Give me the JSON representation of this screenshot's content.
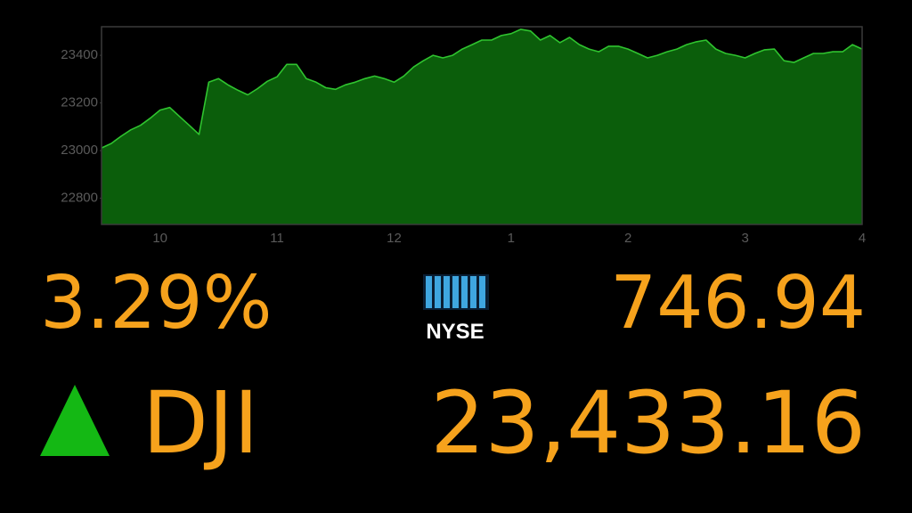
{
  "chart_data": {
    "type": "area",
    "categories": [
      null,
      null,
      null,
      null,
      null,
      null,
      "10",
      null,
      null,
      null,
      null,
      null,
      null,
      null,
      null,
      null,
      null,
      null,
      "11",
      null,
      null,
      null,
      null,
      null,
      null,
      null,
      null,
      null,
      null,
      null,
      "12",
      null,
      null,
      null,
      null,
      null,
      null,
      null,
      null,
      null,
      null,
      null,
      "1",
      null,
      null,
      null,
      null,
      null,
      null,
      null,
      null,
      null,
      null,
      null,
      "2",
      null,
      null,
      null,
      null,
      null,
      null,
      null,
      null,
      null,
      null,
      null,
      "3",
      null,
      null,
      null,
      null,
      null,
      null,
      null,
      null,
      null,
      null,
      null,
      "4"
    ],
    "values": [
      23011,
      23030,
      23060,
      23087,
      23106,
      23136,
      23170,
      23181,
      23143,
      23106,
      23068,
      23287,
      23302,
      23275,
      23253,
      23234,
      23260,
      23291,
      23310,
      23362,
      23362,
      23302,
      23287,
      23264,
      23257,
      23276,
      23287,
      23302,
      23313,
      23302,
      23287,
      23313,
      23351,
      23377,
      23400,
      23389,
      23400,
      23426,
      23445,
      23464,
      23464,
      23483,
      23491,
      23509,
      23502,
      23464,
      23483,
      23453,
      23475,
      23445,
      23426,
      23415,
      23438,
      23438,
      23426,
      23408,
      23389,
      23400,
      23415,
      23426,
      23445,
      23457,
      23464,
      23426,
      23408,
      23400,
      23389,
      23408,
      23423,
      23426,
      23377,
      23370,
      23389,
      23408,
      23408,
      23415,
      23415,
      23445,
      23426
    ],
    "color": "#2fc42f",
    "fill": "#0b5e0b",
    "ylim": [
      22690,
      23520
    ],
    "yticks": [
      22800,
      23000,
      23200,
      23400
    ]
  },
  "quote": {
    "change_percent": "3.29%",
    "exchange": "NYSE",
    "points_change": "746.94",
    "symbol": "DJI",
    "price": "23,433.16"
  }
}
